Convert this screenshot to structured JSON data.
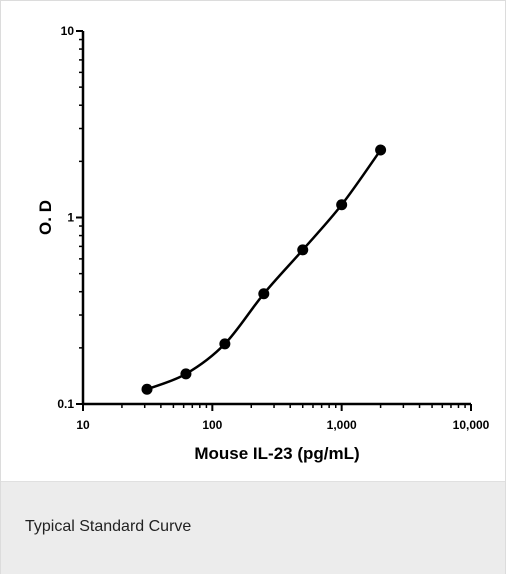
{
  "caption": "Typical Standard Curve",
  "colors": {
    "ink": "#000000",
    "caption_bg": "#ececec"
  },
  "chart_data": {
    "type": "line",
    "xlabel": "Mouse IL-23 (pg/mL)",
    "ylabel": "O. D",
    "xscale": "log",
    "yscale": "log",
    "xlim": [
      10,
      10000
    ],
    "ylim": [
      0.1,
      10
    ],
    "x_ticks": [
      10,
      100,
      1000,
      10000
    ],
    "x_tick_labels": [
      "10",
      "100",
      "1,000",
      "10,000"
    ],
    "y_ticks": [
      0.1,
      1,
      10
    ],
    "y_tick_labels": [
      "0.1",
      "1",
      "10"
    ],
    "grid": false,
    "series": [
      {
        "x": [
          31.25,
          62.5,
          125,
          250,
          500,
          1000,
          2000
        ],
        "y": [
          0.12,
          0.145,
          0.21,
          0.39,
          0.67,
          1.17,
          2.3
        ]
      }
    ]
  }
}
